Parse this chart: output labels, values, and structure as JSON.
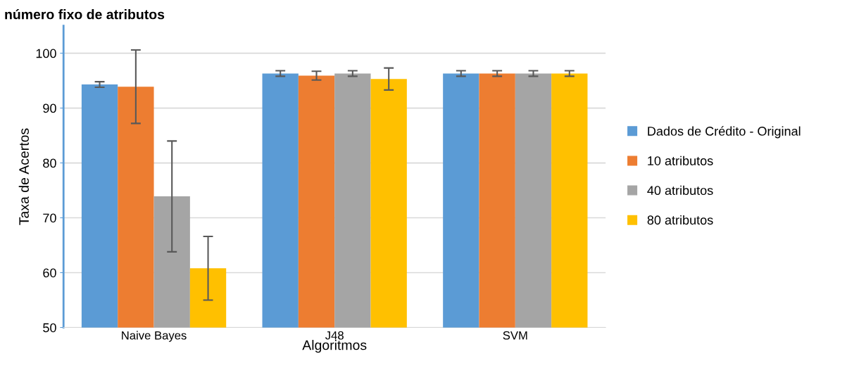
{
  "chart_data": {
    "type": "bar",
    "title": "número fixo de atributos",
    "xlabel": "Algoritmos",
    "ylabel": "Taxa de Acertos",
    "categories": [
      "Naive Bayes",
      "J48",
      "SVM"
    ],
    "series": [
      {
        "name": "Dados de Crédito - Original",
        "color": "#5b9bd5",
        "values": [
          94.3,
          96.3,
          96.3
        ],
        "errors": [
          0.5,
          0.5,
          0.5
        ]
      },
      {
        "name": "10 atributos",
        "color": "#ed7d31",
        "values": [
          93.9,
          95.9,
          96.3
        ],
        "errors": [
          6.7,
          0.8,
          0.5
        ]
      },
      {
        "name": "40 atributos",
        "color": "#a5a5a5",
        "values": [
          73.9,
          96.3,
          96.3
        ],
        "errors": [
          10.1,
          0.5,
          0.5
        ]
      },
      {
        "name": "80 atributos",
        "color": "#ffc000",
        "values": [
          60.8,
          95.3,
          96.3
        ],
        "errors": [
          5.8,
          2.0,
          0.5
        ]
      }
    ],
    "ylim": [
      50,
      105
    ],
    "yticks": [
      50,
      60,
      70,
      80,
      90,
      100
    ],
    "grid": "y",
    "legend": "right"
  }
}
